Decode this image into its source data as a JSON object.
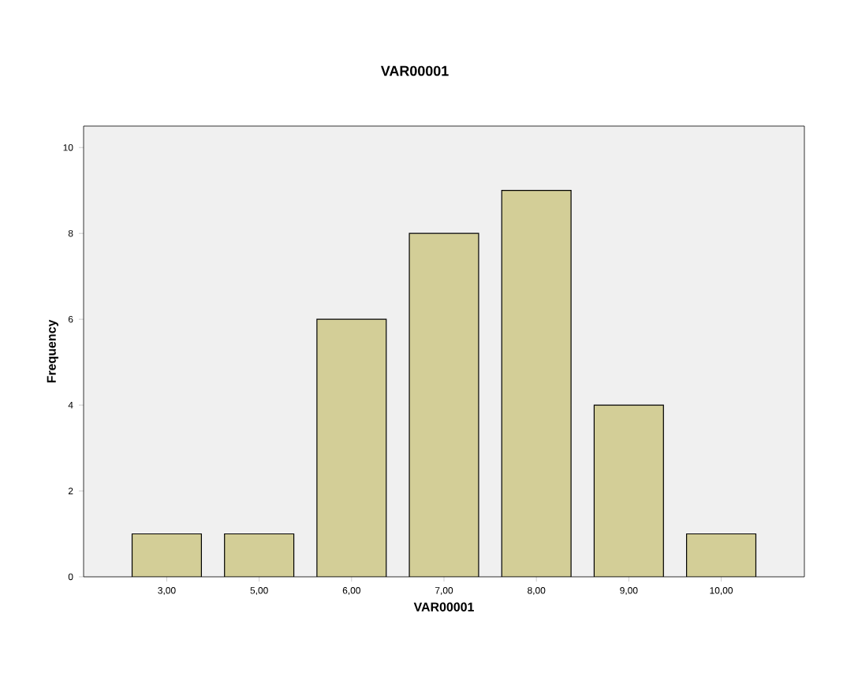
{
  "chart_data": {
    "type": "bar",
    "title": "VAR00001",
    "xlabel": "VAR00001",
    "ylabel": "Frequency",
    "categories": [
      "3,00",
      "5,00",
      "6,00",
      "7,00",
      "8,00",
      "9,00",
      "10,00"
    ],
    "values": [
      1,
      1,
      6,
      8,
      9,
      4,
      1
    ],
    "color": "#d3ce97",
    "ylim": [
      0,
      10.5
    ],
    "yticks": [
      0,
      2,
      4,
      6,
      8,
      10
    ],
    "grid": false
  }
}
